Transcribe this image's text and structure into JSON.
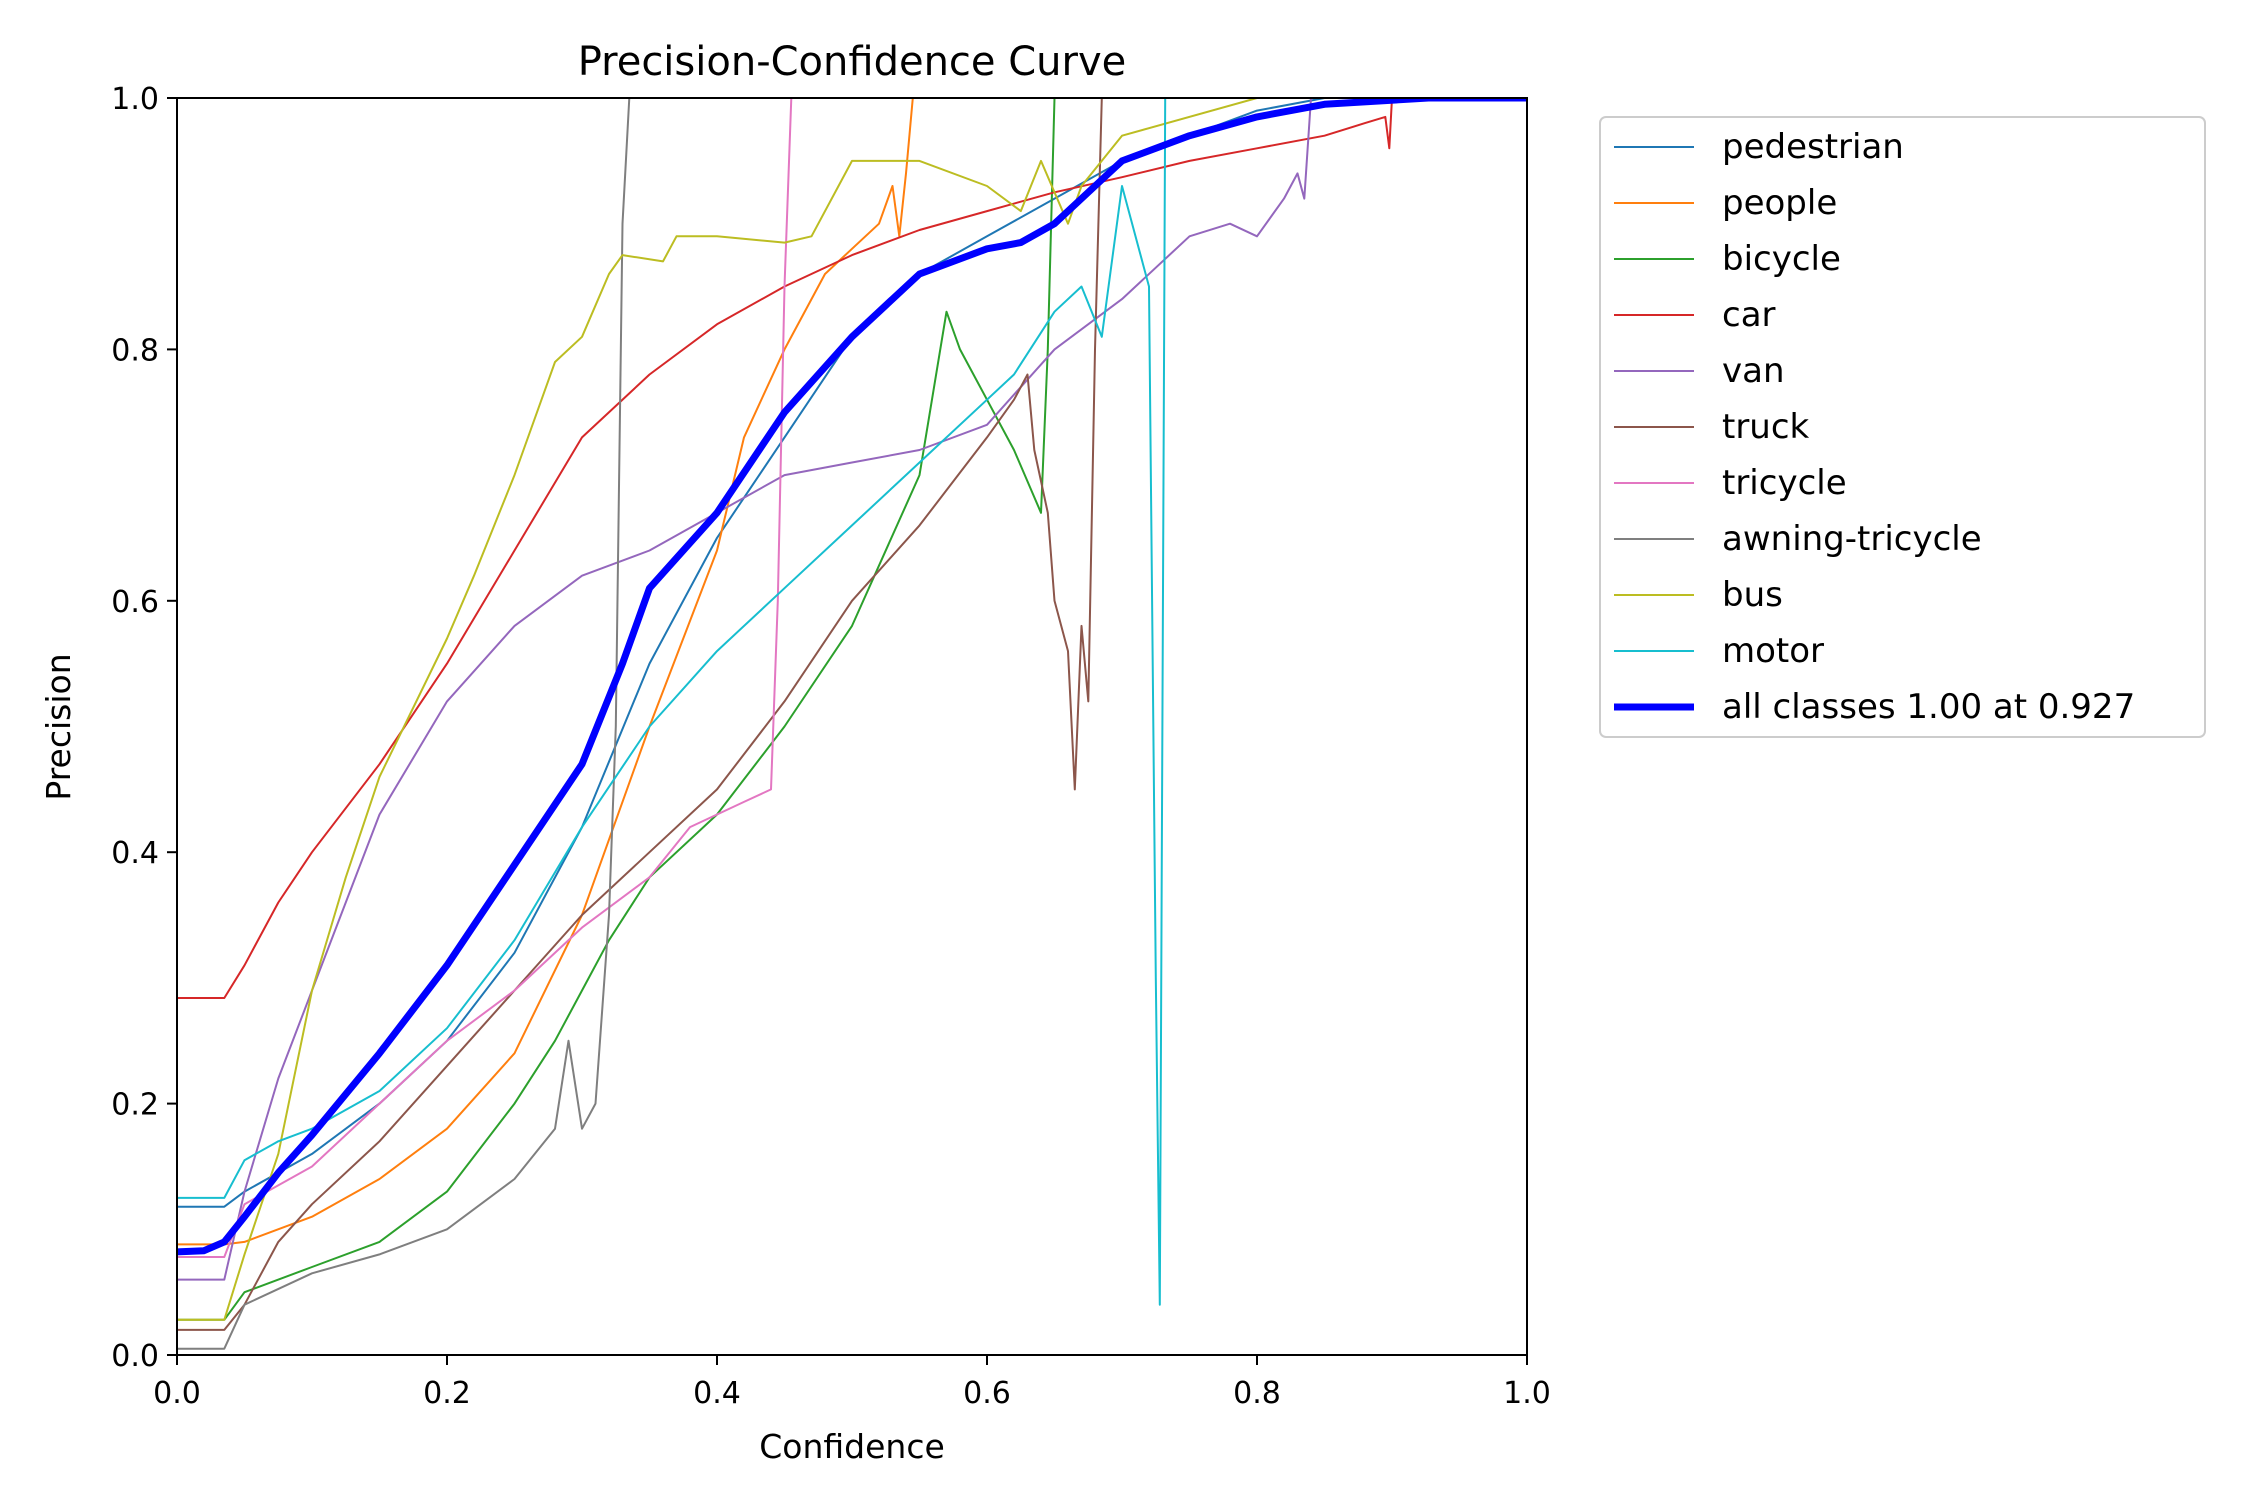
{
  "chart_data": {
    "type": "line",
    "title": "Precision-Confidence Curve",
    "xlabel": "Confidence",
    "ylabel": "Precision",
    "xlim": [
      0,
      1
    ],
    "ylim": [
      0,
      1
    ],
    "xticks": [
      "0.0",
      "0.2",
      "0.4",
      "0.6",
      "0.8",
      "1.0"
    ],
    "yticks": [
      "0.0",
      "0.2",
      "0.4",
      "0.6",
      "0.8",
      "1.0"
    ],
    "grid": false,
    "legend_position": "outside-right-top",
    "series": [
      {
        "name": "pedestrian",
        "color": "#1f77b4",
        "width": 2,
        "points": [
          [
            0,
            0.118
          ],
          [
            0.035,
            0.118
          ],
          [
            0.05,
            0.13
          ],
          [
            0.1,
            0.16
          ],
          [
            0.15,
            0.2
          ],
          [
            0.2,
            0.25
          ],
          [
            0.25,
            0.32
          ],
          [
            0.3,
            0.42
          ],
          [
            0.35,
            0.55
          ],
          [
            0.4,
            0.65
          ],
          [
            0.45,
            0.73
          ],
          [
            0.5,
            0.81
          ],
          [
            0.55,
            0.86
          ],
          [
            0.6,
            0.89
          ],
          [
            0.65,
            0.92
          ],
          [
            0.7,
            0.95
          ],
          [
            0.75,
            0.97
          ],
          [
            0.8,
            0.99
          ],
          [
            0.85,
            1.0
          ],
          [
            1.0,
            1.0
          ]
        ]
      },
      {
        "name": "people",
        "color": "#ff7f0e",
        "width": 2,
        "points": [
          [
            0,
            0.088
          ],
          [
            0.035,
            0.088
          ],
          [
            0.05,
            0.09
          ],
          [
            0.1,
            0.11
          ],
          [
            0.15,
            0.14
          ],
          [
            0.2,
            0.18
          ],
          [
            0.25,
            0.24
          ],
          [
            0.3,
            0.35
          ],
          [
            0.35,
            0.5
          ],
          [
            0.4,
            0.64
          ],
          [
            0.42,
            0.73
          ],
          [
            0.45,
            0.8
          ],
          [
            0.48,
            0.86
          ],
          [
            0.5,
            0.88
          ],
          [
            0.52,
            0.9
          ],
          [
            0.53,
            0.93
          ],
          [
            0.535,
            0.89
          ],
          [
            0.54,
            0.94
          ],
          [
            0.545,
            1.0
          ]
        ]
      },
      {
        "name": "bicycle",
        "color": "#2ca02c",
        "width": 2,
        "points": [
          [
            0,
            0.028
          ],
          [
            0.035,
            0.028
          ],
          [
            0.05,
            0.05
          ],
          [
            0.1,
            0.07
          ],
          [
            0.15,
            0.09
          ],
          [
            0.2,
            0.13
          ],
          [
            0.25,
            0.2
          ],
          [
            0.28,
            0.25
          ],
          [
            0.3,
            0.29
          ],
          [
            0.32,
            0.33
          ],
          [
            0.35,
            0.38
          ],
          [
            0.4,
            0.43
          ],
          [
            0.45,
            0.5
          ],
          [
            0.5,
            0.58
          ],
          [
            0.55,
            0.7
          ],
          [
            0.57,
            0.83
          ],
          [
            0.58,
            0.8
          ],
          [
            0.6,
            0.76
          ],
          [
            0.62,
            0.72
          ],
          [
            0.64,
            0.67
          ],
          [
            0.645,
            0.8
          ],
          [
            0.65,
            1.0
          ]
        ]
      },
      {
        "name": "car",
        "color": "#d62728",
        "width": 2,
        "points": [
          [
            0,
            0.284
          ],
          [
            0.035,
            0.284
          ],
          [
            0.05,
            0.31
          ],
          [
            0.075,
            0.36
          ],
          [
            0.1,
            0.4
          ],
          [
            0.15,
            0.47
          ],
          [
            0.2,
            0.55
          ],
          [
            0.25,
            0.64
          ],
          [
            0.3,
            0.73
          ],
          [
            0.35,
            0.78
          ],
          [
            0.4,
            0.82
          ],
          [
            0.45,
            0.85
          ],
          [
            0.5,
            0.875
          ],
          [
            0.55,
            0.895
          ],
          [
            0.6,
            0.91
          ],
          [
            0.65,
            0.925
          ],
          [
            0.7,
            0.937
          ],
          [
            0.75,
            0.95
          ],
          [
            0.8,
            0.96
          ],
          [
            0.85,
            0.97
          ],
          [
            0.88,
            0.98
          ],
          [
            0.895,
            0.985
          ],
          [
            0.898,
            0.96
          ],
          [
            0.9,
            1.0
          ],
          [
            1.0,
            1.0
          ]
        ]
      },
      {
        "name": "van",
        "color": "#9467bd",
        "width": 2,
        "points": [
          [
            0,
            0.06
          ],
          [
            0.035,
            0.06
          ],
          [
            0.05,
            0.13
          ],
          [
            0.075,
            0.22
          ],
          [
            0.1,
            0.29
          ],
          [
            0.15,
            0.43
          ],
          [
            0.2,
            0.52
          ],
          [
            0.25,
            0.58
          ],
          [
            0.3,
            0.62
          ],
          [
            0.35,
            0.64
          ],
          [
            0.4,
            0.67
          ],
          [
            0.45,
            0.7
          ],
          [
            0.5,
            0.71
          ],
          [
            0.55,
            0.72
          ],
          [
            0.6,
            0.74
          ],
          [
            0.65,
            0.8
          ],
          [
            0.7,
            0.84
          ],
          [
            0.75,
            0.89
          ],
          [
            0.78,
            0.9
          ],
          [
            0.8,
            0.89
          ],
          [
            0.82,
            0.92
          ],
          [
            0.83,
            0.94
          ],
          [
            0.835,
            0.92
          ],
          [
            0.84,
            1.0
          ],
          [
            1.0,
            1.0
          ]
        ]
      },
      {
        "name": "truck",
        "color": "#8c564b",
        "width": 2,
        "points": [
          [
            0,
            0.02
          ],
          [
            0.035,
            0.02
          ],
          [
            0.05,
            0.04
          ],
          [
            0.075,
            0.09
          ],
          [
            0.1,
            0.12
          ],
          [
            0.15,
            0.17
          ],
          [
            0.2,
            0.23
          ],
          [
            0.25,
            0.29
          ],
          [
            0.3,
            0.35
          ],
          [
            0.35,
            0.4
          ],
          [
            0.4,
            0.45
          ],
          [
            0.45,
            0.52
          ],
          [
            0.5,
            0.6
          ],
          [
            0.55,
            0.66
          ],
          [
            0.6,
            0.73
          ],
          [
            0.62,
            0.76
          ],
          [
            0.63,
            0.78
          ],
          [
            0.635,
            0.72
          ],
          [
            0.645,
            0.67
          ],
          [
            0.65,
            0.6
          ],
          [
            0.66,
            0.56
          ],
          [
            0.665,
            0.45
          ],
          [
            0.67,
            0.58
          ],
          [
            0.675,
            0.52
          ],
          [
            0.68,
            0.8
          ],
          [
            0.685,
            1.0
          ]
        ]
      },
      {
        "name": "tricycle",
        "color": "#e377c2",
        "width": 2,
        "points": [
          [
            0,
            0.078
          ],
          [
            0.035,
            0.078
          ],
          [
            0.05,
            0.12
          ],
          [
            0.1,
            0.15
          ],
          [
            0.15,
            0.2
          ],
          [
            0.2,
            0.25
          ],
          [
            0.25,
            0.29
          ],
          [
            0.3,
            0.34
          ],
          [
            0.35,
            0.38
          ],
          [
            0.38,
            0.42
          ],
          [
            0.4,
            0.43
          ],
          [
            0.42,
            0.44
          ],
          [
            0.44,
            0.45
          ],
          [
            0.445,
            0.6
          ],
          [
            0.45,
            0.85
          ],
          [
            0.455,
            1.0
          ]
        ]
      },
      {
        "name": "awning-tricycle",
        "color": "#7f7f7f",
        "width": 2,
        "points": [
          [
            0,
            0.005
          ],
          [
            0.035,
            0.005
          ],
          [
            0.05,
            0.04
          ],
          [
            0.1,
            0.065
          ],
          [
            0.15,
            0.08
          ],
          [
            0.2,
            0.1
          ],
          [
            0.25,
            0.14
          ],
          [
            0.28,
            0.18
          ],
          [
            0.29,
            0.25
          ],
          [
            0.3,
            0.18
          ],
          [
            0.31,
            0.2
          ],
          [
            0.32,
            0.35
          ],
          [
            0.325,
            0.5
          ],
          [
            0.33,
            0.9
          ],
          [
            0.335,
            1.0
          ]
        ]
      },
      {
        "name": "bus",
        "color": "#bcbd22",
        "width": 2,
        "points": [
          [
            0,
            0.028
          ],
          [
            0.035,
            0.028
          ],
          [
            0.05,
            0.08
          ],
          [
            0.075,
            0.16
          ],
          [
            0.1,
            0.29
          ],
          [
            0.125,
            0.38
          ],
          [
            0.15,
            0.46
          ],
          [
            0.2,
            0.57
          ],
          [
            0.22,
            0.62
          ],
          [
            0.25,
            0.7
          ],
          [
            0.27,
            0.76
          ],
          [
            0.28,
            0.79
          ],
          [
            0.3,
            0.81
          ],
          [
            0.32,
            0.86
          ],
          [
            0.33,
            0.875
          ],
          [
            0.36,
            0.87
          ],
          [
            0.37,
            0.89
          ],
          [
            0.4,
            0.89
          ],
          [
            0.45,
            0.885
          ],
          [
            0.47,
            0.89
          ],
          [
            0.5,
            0.95
          ],
          [
            0.55,
            0.95
          ],
          [
            0.6,
            0.93
          ],
          [
            0.625,
            0.91
          ],
          [
            0.64,
            0.95
          ],
          [
            0.66,
            0.9
          ],
          [
            0.67,
            0.93
          ],
          [
            0.7,
            0.97
          ],
          [
            0.8,
            1.0
          ],
          [
            1.0,
            1.0
          ]
        ]
      },
      {
        "name": "motor",
        "color": "#17becf",
        "width": 2,
        "points": [
          [
            0,
            0.125
          ],
          [
            0.035,
            0.125
          ],
          [
            0.05,
            0.155
          ],
          [
            0.075,
            0.17
          ],
          [
            0.1,
            0.18
          ],
          [
            0.15,
            0.21
          ],
          [
            0.2,
            0.26
          ],
          [
            0.25,
            0.33
          ],
          [
            0.3,
            0.42
          ],
          [
            0.35,
            0.5
          ],
          [
            0.4,
            0.56
          ],
          [
            0.45,
            0.61
          ],
          [
            0.5,
            0.66
          ],
          [
            0.55,
            0.71
          ],
          [
            0.6,
            0.76
          ],
          [
            0.62,
            0.78
          ],
          [
            0.65,
            0.83
          ],
          [
            0.67,
            0.85
          ],
          [
            0.685,
            0.81
          ],
          [
            0.7,
            0.93
          ],
          [
            0.72,
            0.85
          ],
          [
            0.725,
            0.3
          ],
          [
            0.728,
            0.04
          ],
          [
            0.732,
            1.0
          ],
          [
            1.0,
            1.0
          ]
        ]
      },
      {
        "name": "all classes 1.00 at 0.927",
        "color": "#0000ff",
        "width": 7,
        "points": [
          [
            0,
            0.082
          ],
          [
            0.02,
            0.083
          ],
          [
            0.035,
            0.09
          ],
          [
            0.05,
            0.11
          ],
          [
            0.075,
            0.145
          ],
          [
            0.1,
            0.175
          ],
          [
            0.15,
            0.24
          ],
          [
            0.2,
            0.31
          ],
          [
            0.25,
            0.39
          ],
          [
            0.3,
            0.47
          ],
          [
            0.33,
            0.55
          ],
          [
            0.35,
            0.61
          ],
          [
            0.4,
            0.67
          ],
          [
            0.45,
            0.75
          ],
          [
            0.5,
            0.81
          ],
          [
            0.55,
            0.86
          ],
          [
            0.6,
            0.88
          ],
          [
            0.625,
            0.885
          ],
          [
            0.65,
            0.9
          ],
          [
            0.68,
            0.93
          ],
          [
            0.7,
            0.95
          ],
          [
            0.75,
            0.97
          ],
          [
            0.8,
            0.985
          ],
          [
            0.85,
            0.995
          ],
          [
            0.927,
            1.0
          ],
          [
            1.0,
            1.0
          ]
        ]
      }
    ]
  }
}
